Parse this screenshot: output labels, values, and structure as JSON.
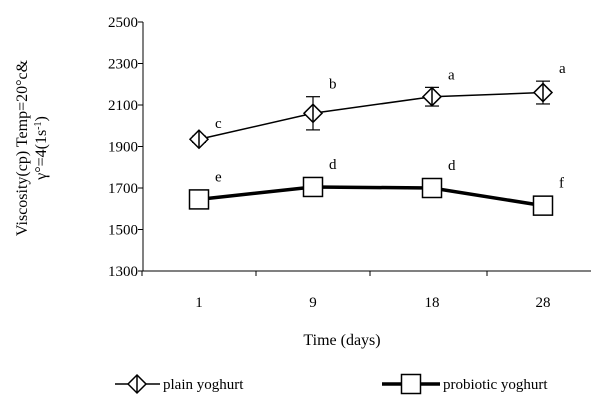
{
  "chart_data": {
    "type": "line",
    "title": "",
    "xlabel": "Time (days)",
    "ylabel_line1": "Viscosity(cp) Temp=20°c&",
    "ylabel_line2_prefix": "γ°=4(1s",
    "ylabel_line2_sup": "-1",
    "ylabel_line2_suffix": ")",
    "categories": [
      "1",
      "9",
      "18",
      "28"
    ],
    "ylim": [
      1300,
      2500
    ],
    "yticks": [
      "2500",
      "2300",
      "2100",
      "1900",
      "1700",
      "1500",
      "1300"
    ],
    "grid": false,
    "legend_position": "bottom",
    "series": [
      {
        "name": "plain yoghurt",
        "marker": "diamond",
        "values": [
          1935,
          2060,
          2140,
          2160
        ],
        "errors": [
          15,
          80,
          45,
          55
        ],
        "labels": [
          "c",
          "b",
          "a",
          "a"
        ],
        "color": "#000000"
      },
      {
        "name": "probiotic yoghurt",
        "marker": "square",
        "values": [
          1645,
          1705,
          1700,
          1615
        ],
        "errors": [
          0,
          0,
          0,
          0
        ],
        "labels": [
          "e",
          "d",
          "d",
          "f"
        ],
        "color": "#000000"
      }
    ]
  }
}
